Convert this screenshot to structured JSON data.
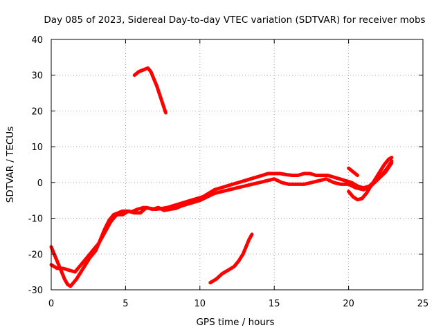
{
  "chart_data": {
    "type": "line",
    "title": "Day 085 of 2023, Sidereal Day-to-day VTEC variation (SDTVAR) for receiver mobs",
    "xlabel": "GPS time / hours",
    "ylabel": "SDTVAR / TECUs",
    "xlim": [
      0,
      25
    ],
    "ylim": [
      -30,
      40
    ],
    "xticks": [
      0,
      5,
      10,
      15,
      20,
      25
    ],
    "yticks": [
      -30,
      -20,
      -10,
      0,
      10,
      20,
      30,
      40
    ],
    "grid": true,
    "color": "#ff0000",
    "series": [
      {
        "name": "track-1",
        "x": [
          0.0,
          0.3,
          0.6,
          0.9,
          1.1,
          1.3,
          1.5,
          1.7,
          2.0,
          2.3,
          2.6,
          3.0,
          3.3,
          3.6,
          3.9,
          4.2,
          4.5,
          4.8,
          5.1,
          5.4,
          5.8,
          6.2,
          6.6,
          7.0,
          7.4,
          7.8,
          8.2,
          8.6,
          9.0,
          9.4,
          9.8,
          10.2,
          10.6,
          11.0,
          11.4,
          11.8,
          12.2,
          12.6,
          13.0,
          13.4,
          13.8,
          14.2,
          14.6,
          15.0,
          15.4,
          15.8,
          16.2,
          16.6,
          17.0,
          17.4,
          17.8,
          18.2,
          18.6,
          19.0,
          19.4,
          19.8,
          20.2,
          20.6,
          21.0,
          21.4,
          21.8,
          22.2,
          22.6,
          22.9
        ],
        "y": [
          -18,
          -21,
          -24,
          -27,
          -28.5,
          -29,
          -28,
          -27,
          -25,
          -23,
          -21,
          -19,
          -16,
          -13,
          -10.5,
          -9,
          -8.5,
          -8,
          -8,
          -8.2,
          -7.5,
          -7,
          -7.2,
          -7.5,
          -7.3,
          -7,
          -6.5,
          -6,
          -5.5,
          -5,
          -4.5,
          -4,
          -3,
          -2,
          -1.5,
          -1,
          -0.5,
          0,
          0.5,
          1,
          1.5,
          2,
          2.5,
          2.5,
          2.5,
          2.2,
          2,
          2,
          2.5,
          2.5,
          2,
          2,
          2,
          1.5,
          1,
          0.5,
          0,
          -1,
          -1.5,
          -1,
          0.5,
          2,
          4,
          6
        ]
      },
      {
        "name": "track-2",
        "x": [
          0.0,
          0.4,
          0.8,
          1.2,
          1.6,
          2.0,
          2.4,
          2.8,
          3.2,
          3.6,
          4.0,
          4.4,
          4.8,
          5.2,
          5.6,
          6.0,
          6.4,
          6.8,
          7.2,
          7.6,
          8.0,
          8.4,
          8.8,
          9.2,
          9.6,
          10.0,
          10.5,
          11.0,
          11.5,
          12.0,
          12.5,
          13.0,
          13.5,
          14.0,
          14.5,
          15.0,
          15.5,
          16.0,
          16.5,
          17.0,
          17.5,
          18.0,
          18.5,
          19.0,
          19.5,
          20.0,
          20.5,
          21.0,
          21.5,
          22.0,
          22.5,
          22.9
        ],
        "y": [
          -23,
          -24,
          -24,
          -24.5,
          -25,
          -23,
          -21,
          -19,
          -17,
          -14,
          -11,
          -9,
          -9,
          -8,
          -8.5,
          -8.5,
          -7,
          -7.5,
          -7,
          -7.8,
          -7.5,
          -7.2,
          -6.5,
          -6,
          -5.5,
          -5,
          -4,
          -3,
          -2.5,
          -2,
          -1.5,
          -1,
          -0.5,
          0,
          0.5,
          1,
          0,
          -0.5,
          -0.5,
          -0.5,
          0,
          0.5,
          1,
          0,
          -0.5,
          -0.5,
          -1.5,
          -2,
          -1,
          1,
          3,
          5.5
        ]
      },
      {
        "name": "track-3",
        "x": [
          20.0,
          20.3,
          20.6,
          20.9,
          21.2,
          21.5,
          21.8,
          22.1,
          22.4,
          22.7,
          22.9
        ],
        "y": [
          -2.5,
          -4,
          -4.8,
          -4.5,
          -3,
          -1,
          1,
          3,
          5,
          6.5,
          7
        ]
      },
      {
        "name": "track-4",
        "x": [
          20.0,
          20.3,
          20.6
        ],
        "y": [
          4,
          3,
          2
        ]
      },
      {
        "name": "track-5",
        "x": [
          5.6,
          5.9,
          6.2,
          6.5,
          6.7,
          6.9,
          7.1,
          7.3,
          7.5,
          7.7
        ],
        "y": [
          30,
          31,
          31.5,
          32,
          31,
          29,
          27,
          24.5,
          22,
          19.5
        ]
      },
      {
        "name": "track-6",
        "x": [
          10.7,
          11.1,
          11.5,
          11.9,
          12.3,
          12.6,
          12.9,
          13.1,
          13.3,
          13.5
        ],
        "y": [
          -28,
          -27,
          -25.5,
          -24.5,
          -23.5,
          -22,
          -20,
          -18,
          -16,
          -14.5
        ]
      }
    ]
  }
}
